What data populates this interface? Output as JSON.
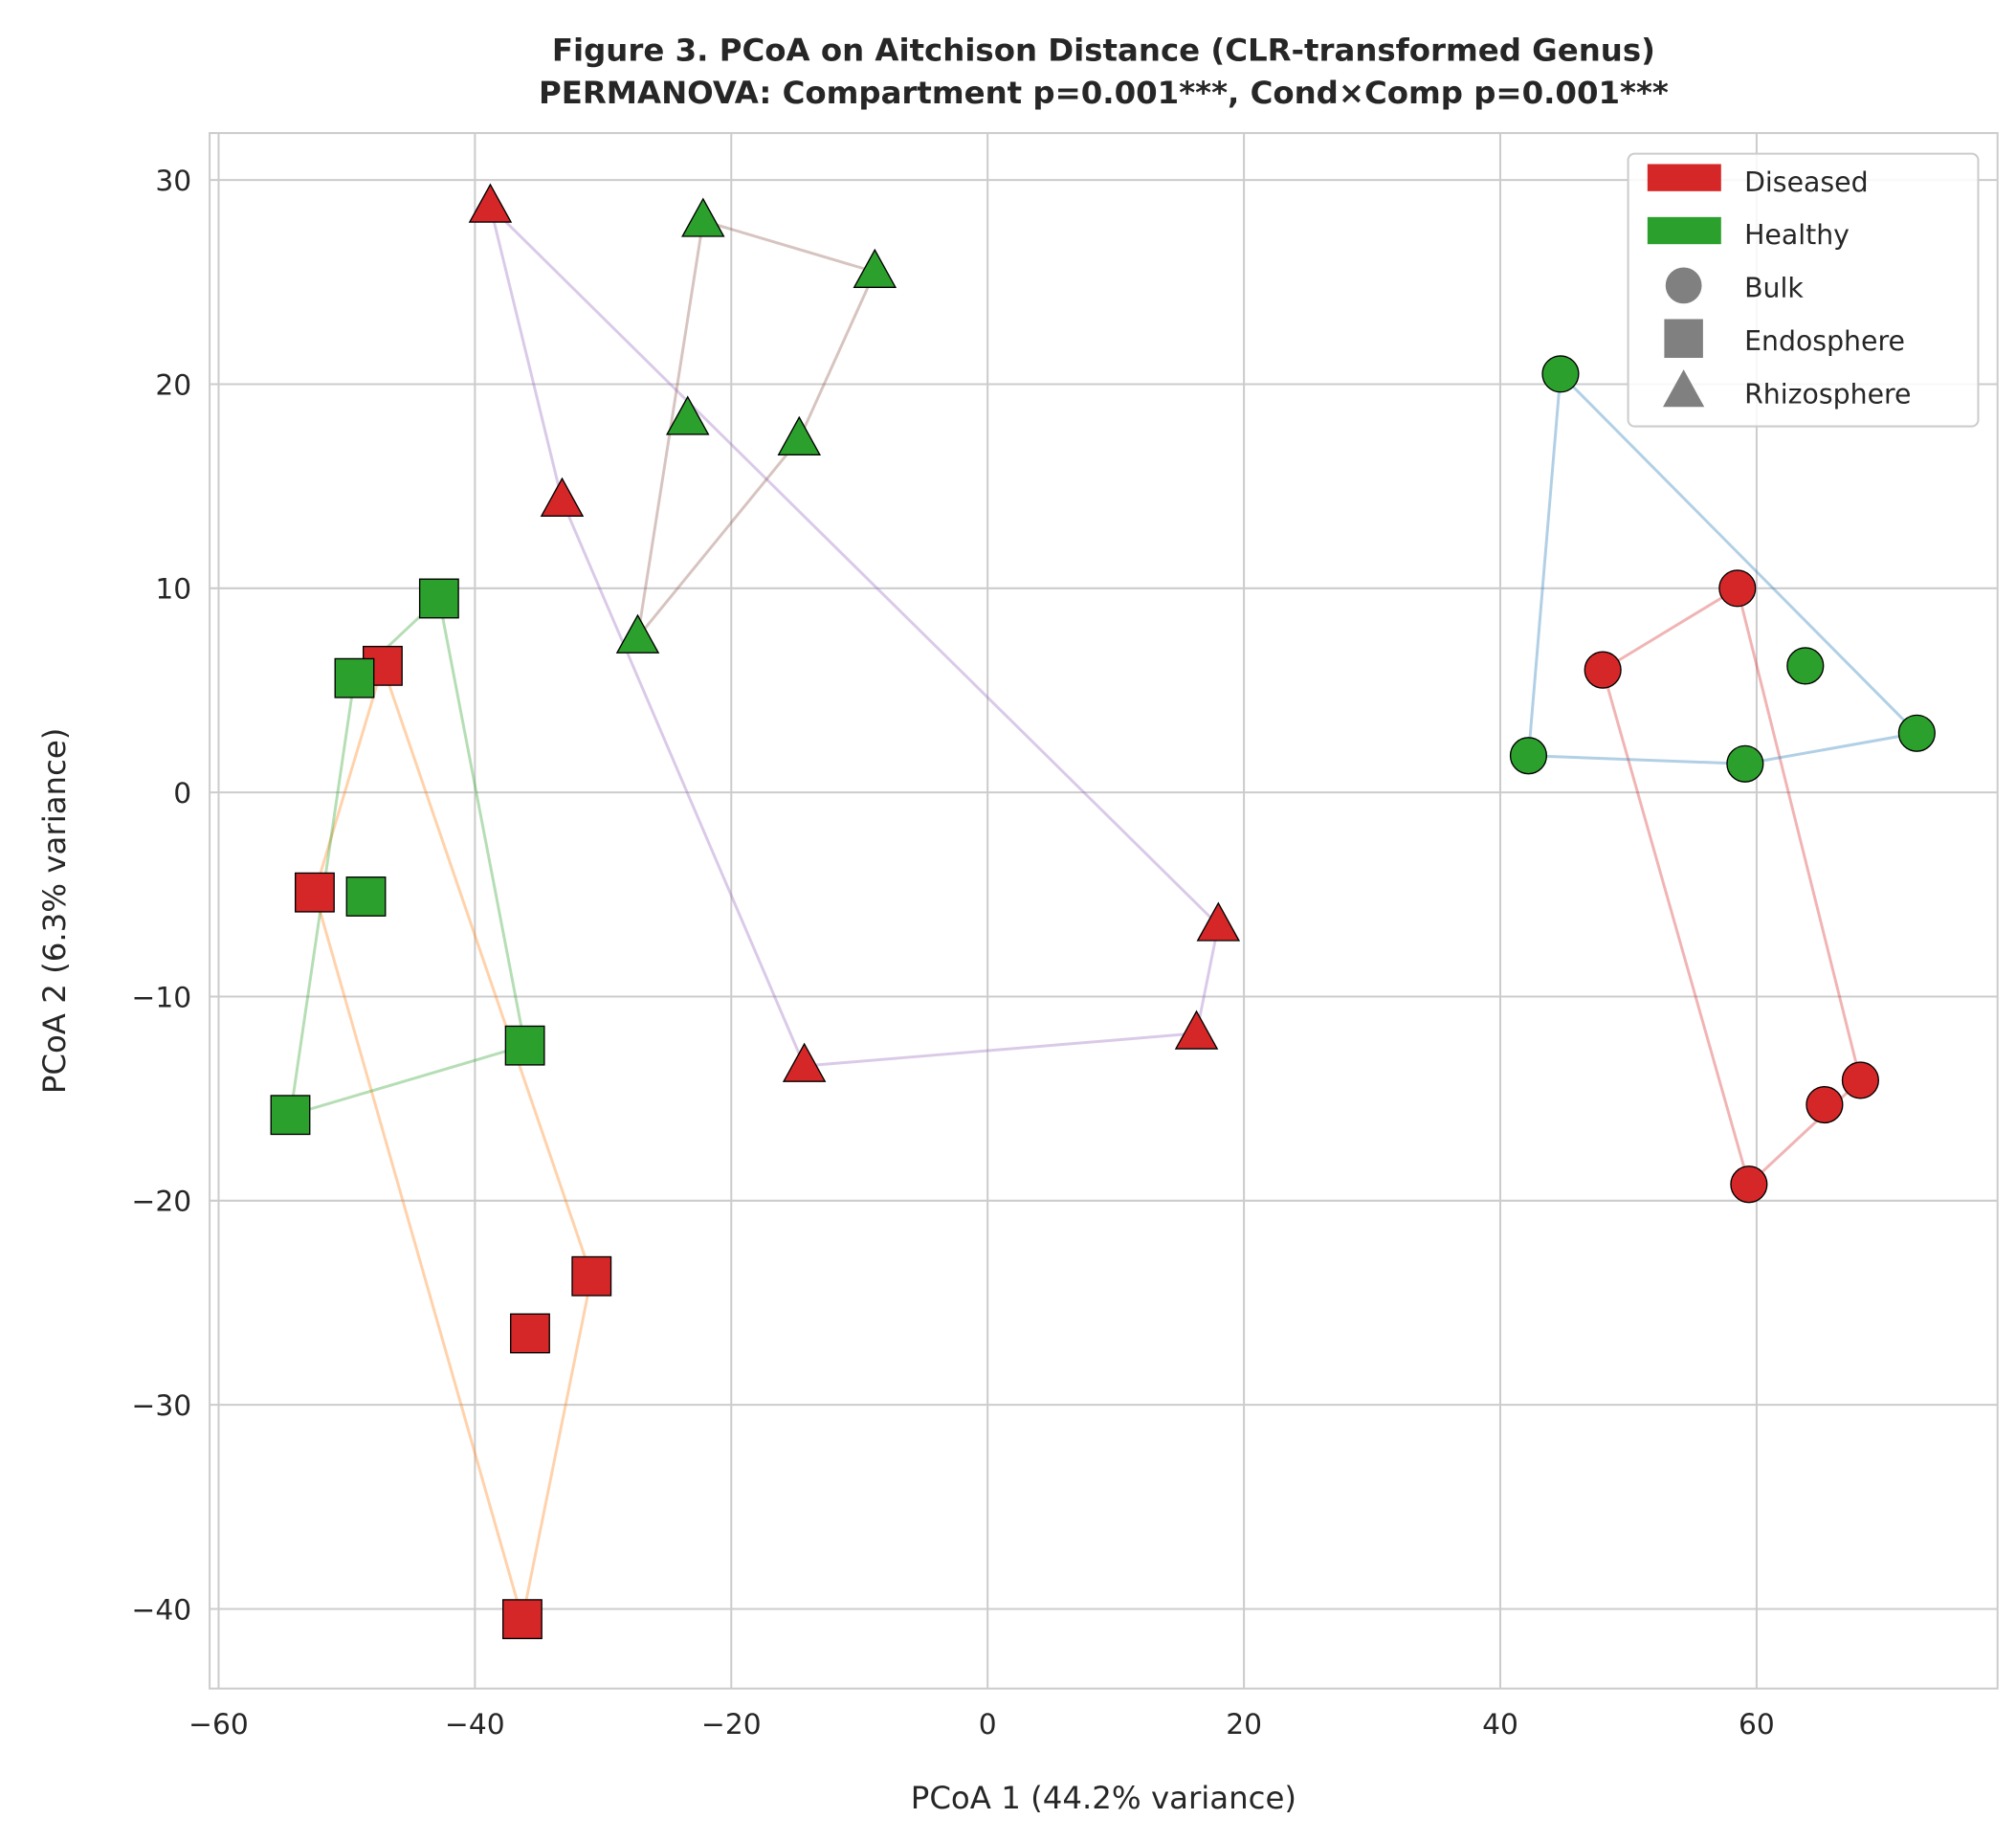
{
  "chart_data": {
    "type": "scatter",
    "title": "Figure 3. PCoA on Aitchison Distance (CLR-transformed Genus)",
    "subtitle": "PERMANOVA: Compartment p=0.001***, Cond×Comp p=0.001***",
    "xlabel": "PCoA 1 (44.2% variance)",
    "ylabel": "PCoA 2 (6.3% variance)",
    "xlim": [
      -60.7,
      78.8
    ],
    "ylim": [
      -43.9,
      32.3
    ],
    "xticks": [
      -60,
      -40,
      -20,
      0,
      20,
      40,
      60
    ],
    "yticks": [
      -40,
      -30,
      -20,
      -10,
      0,
      10,
      20,
      30
    ],
    "grid": true,
    "legend_placement": "top-right",
    "condition_colors": {
      "Diseased": "#d62728",
      "Healthy": "#2ca02c"
    },
    "legend": [
      {
        "label": "Diseased",
        "kind": "patch",
        "color": "#d62728"
      },
      {
        "label": "Healthy",
        "kind": "patch",
        "color": "#2ca02c"
      },
      {
        "label": "Bulk",
        "kind": "marker",
        "marker": "circle"
      },
      {
        "label": "Endosphere",
        "kind": "marker",
        "marker": "square"
      },
      {
        "label": "Rhizosphere",
        "kind": "marker",
        "marker": "triangle"
      }
    ],
    "groups": [
      {
        "condition": "Diseased",
        "compartment": "Bulk",
        "marker": "circle",
        "hull_color": "#d62728",
        "points": [
          [
            58.5,
            10.0
          ],
          [
            48.0,
            6.0
          ],
          [
            68.1,
            -14.1
          ],
          [
            65.3,
            -15.3
          ],
          [
            59.4,
            -19.2
          ]
        ]
      },
      {
        "condition": "Healthy",
        "compartment": "Bulk",
        "marker": "circle",
        "hull_color": "#1f77b4",
        "points": [
          [
            44.7,
            20.5
          ],
          [
            42.2,
            1.8
          ],
          [
            59.1,
            1.4
          ],
          [
            72.5,
            2.9
          ],
          [
            63.8,
            6.2
          ]
        ]
      },
      {
        "condition": "Diseased",
        "compartment": "Endosphere",
        "marker": "square",
        "hull_color": "#ff7f0e",
        "points": [
          [
            -47.2,
            6.2
          ],
          [
            -52.5,
            -4.9
          ],
          [
            -36.3,
            -40.5
          ],
          [
            -30.9,
            -23.7
          ],
          [
            -35.7,
            -26.5
          ]
        ]
      },
      {
        "condition": "Healthy",
        "compartment": "Endosphere",
        "marker": "square",
        "hull_color": "#2ca02c",
        "points": [
          [
            -42.8,
            9.5
          ],
          [
            -49.4,
            5.6
          ],
          [
            -48.5,
            -5.1
          ],
          [
            -54.4,
            -15.8
          ],
          [
            -36.1,
            -12.4
          ]
        ]
      },
      {
        "condition": "Diseased",
        "compartment": "Rhizosphere",
        "marker": "triangle",
        "hull_color": "#9467bd",
        "points": [
          [
            -38.8,
            28.7
          ],
          [
            -33.2,
            14.3
          ],
          [
            -14.3,
            -13.4
          ],
          [
            16.3,
            -11.8
          ],
          [
            18.0,
            -6.5
          ]
        ]
      },
      {
        "condition": "Healthy",
        "compartment": "Rhizosphere",
        "marker": "triangle",
        "hull_color": "#8c564b",
        "points": [
          [
            -22.2,
            28.0
          ],
          [
            -8.8,
            25.5
          ],
          [
            -23.4,
            18.3
          ],
          [
            -14.7,
            17.3
          ],
          [
            -27.3,
            7.6
          ]
        ]
      }
    ]
  }
}
